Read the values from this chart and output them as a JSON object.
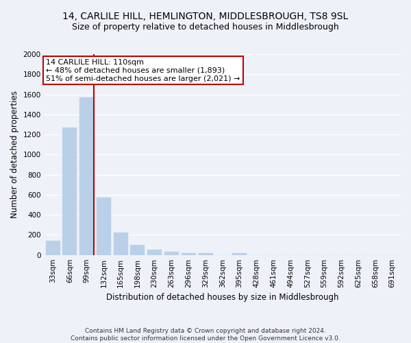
{
  "title": "14, CARLILE HILL, HEMLINGTON, MIDDLESBROUGH, TS8 9SL",
  "subtitle": "Size of property relative to detached houses in Middlesbrough",
  "xlabel": "Distribution of detached houses by size in Middlesbrough",
  "ylabel": "Number of detached properties",
  "footer_line1": "Contains HM Land Registry data © Crown copyright and database right 2024.",
  "footer_line2": "Contains public sector information licensed under the Open Government Licence v3.0.",
  "categories": [
    "33sqm",
    "66sqm",
    "99sqm",
    "132sqm",
    "165sqm",
    "198sqm",
    "230sqm",
    "263sqm",
    "296sqm",
    "329sqm",
    "362sqm",
    "395sqm",
    "428sqm",
    "461sqm",
    "494sqm",
    "527sqm",
    "559sqm",
    "592sqm",
    "625sqm",
    "658sqm",
    "691sqm"
  ],
  "values": [
    140,
    1270,
    1570,
    570,
    220,
    100,
    52,
    30,
    20,
    20,
    0,
    20,
    0,
    0,
    0,
    0,
    0,
    0,
    0,
    0,
    0
  ],
  "bar_color": "#bad0e8",
  "bar_edge_color": "#bad0e8",
  "vline_color": "#c00000",
  "vline_x": 2.4,
  "annotation_text_line1": "14 CARLILE HILL: 110sqm",
  "annotation_text_line2": "← 48% of detached houses are smaller (1,893)",
  "annotation_text_line3": "51% of semi-detached houses are larger (2,021) →",
  "annotation_box_facecolor": "#ffffff",
  "annotation_box_edgecolor": "#c00000",
  "ylim": [
    0,
    2000
  ],
  "yticks": [
    0,
    200,
    400,
    600,
    800,
    1000,
    1200,
    1400,
    1600,
    1800,
    2000
  ],
  "background_color": "#eef2f8",
  "grid_color": "#ffffff",
  "title_fontsize": 10,
  "subtitle_fontsize": 9,
  "axis_label_fontsize": 8.5,
  "tick_fontsize": 7.5,
  "annotation_fontsize": 8,
  "footer_fontsize": 6.5
}
